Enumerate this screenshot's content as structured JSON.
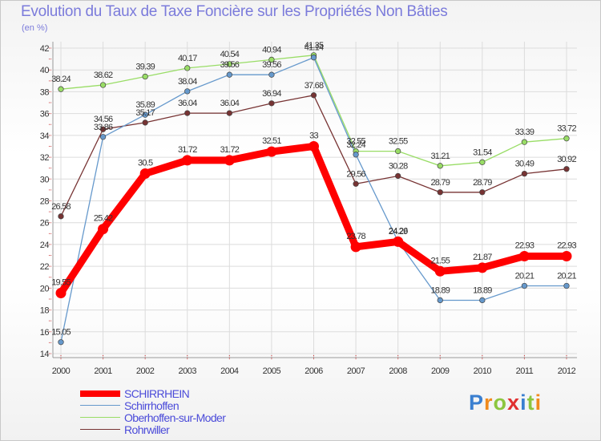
{
  "chart_data": {
    "type": "line",
    "title": "Evolution du Taux de Taxe Foncière sur les Propriétés Non Bâties",
    "subtitle": "(en %)",
    "xlabel": "",
    "ylabel": "",
    "ylim": [
      14,
      42
    ],
    "yticks": [
      14,
      16,
      18,
      20,
      22,
      24,
      26,
      28,
      30,
      32,
      34,
      36,
      38,
      40,
      42
    ],
    "categories": [
      "2000",
      "2001",
      "2002",
      "2003",
      "2004",
      "2005",
      "2006",
      "2007",
      "2008",
      "2009",
      "2010",
      "2011",
      "2012"
    ],
    "series": [
      {
        "name": "SCHIRRHEIN",
        "color": "#ff0000",
        "values": [
          19.55,
          25.42,
          30.5,
          31.72,
          31.72,
          32.51,
          33,
          23.78,
          24.26,
          21.55,
          21.87,
          22.93,
          22.93
        ],
        "labels": [
          "19.55",
          "25.42",
          "30.5",
          "31.72",
          "31.72",
          "32.51",
          "33",
          "23.78",
          "24.26",
          "21.55",
          "21.87",
          "22.93",
          "22.93"
        ]
      },
      {
        "name": "Schirrhoffen",
        "color": "#6699cc",
        "values": [
          15.05,
          33.86,
          35.89,
          38.04,
          39.56,
          39.56,
          41.14,
          32.24,
          24.29,
          18.89,
          18.89,
          20.21,
          20.21
        ],
        "labels": [
          "15.05",
          "33.86",
          "35.89",
          "38.04",
          "39.56",
          "39.56",
          "41.14",
          "32.24",
          "24.29",
          "18.89",
          "18.89",
          "20.21",
          "20.21"
        ]
      },
      {
        "name": "Oberhoffen-sur-Moder",
        "color": "#99dd66",
        "values": [
          38.24,
          38.62,
          39.39,
          40.17,
          40.54,
          40.94,
          41.35,
          32.55,
          32.55,
          31.21,
          31.54,
          33.39,
          33.72
        ],
        "labels": [
          "38.24",
          "38.62",
          "39.39",
          "40.17",
          "40.54",
          "40.94",
          "41.35",
          "32.55",
          "32.55",
          "31.21",
          "31.54",
          "33.39",
          "33.72"
        ]
      },
      {
        "name": "Rohrwiller",
        "color": "#773333",
        "values": [
          26.58,
          34.56,
          35.17,
          36.04,
          36.04,
          36.94,
          37.68,
          29.56,
          30.28,
          28.79,
          28.79,
          30.49,
          30.92
        ],
        "labels": [
          "26.58",
          "34.56",
          "35.17",
          "36.04",
          "36.04",
          "36.94",
          "37.68",
          "29.56",
          "30.28",
          "28.79",
          "28.79",
          "30.49",
          "30.92"
        ]
      }
    ],
    "legend_position": "bottom-left"
  },
  "logo": {
    "letters": [
      "P",
      "r",
      "o",
      "x",
      "i",
      "t",
      "i"
    ]
  }
}
